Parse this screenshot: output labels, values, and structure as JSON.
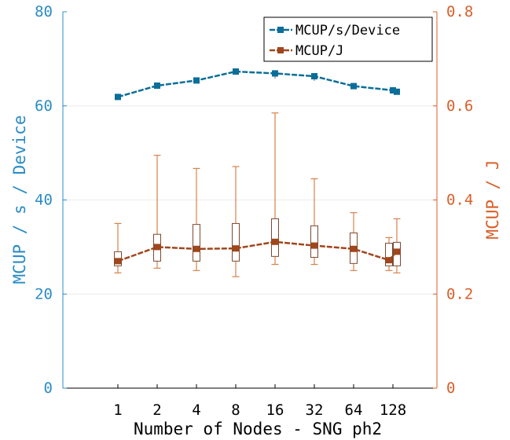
{
  "chart_data": {
    "type": "line",
    "title": "",
    "xlabel": "Number of Nodes - SNG ph2",
    "ylabel_left": "MCUP / s / Device",
    "ylabel_right": "MCUP / J",
    "categories": [
      "1",
      "2",
      "4",
      "8",
      "16",
      "32",
      "64",
      "128"
    ],
    "ylim_left": [
      0,
      80
    ],
    "ylim_right": [
      0,
      0.8
    ],
    "yticks_left": [
      "0",
      "20",
      "40",
      "60",
      "80"
    ],
    "yticks_right": [
      "0",
      "0.2",
      "0.4",
      "0.6",
      "0.8"
    ],
    "grid": true,
    "legend_position": "top-right",
    "colors": {
      "left_axis": "#2b8cc4",
      "right_axis": "#d95f2a",
      "series1": "#0b6e99",
      "series2": "#a0461c",
      "box": "#7a4a30",
      "whisker": "#d9824a"
    },
    "series": [
      {
        "name": "MCUP/s/Device",
        "axis": "left",
        "x": [
          1,
          2,
          3,
          4,
          5,
          6,
          7,
          8,
          8.1
        ],
        "values": [
          61.9,
          64.3,
          65.4,
          67.3,
          66.9,
          66.3,
          64.2,
          63.3,
          63.0
        ],
        "err_low": [
          61.3,
          63.8,
          64.9,
          66.8,
          65.8,
          65.3,
          63.7,
          62.8,
          62.6
        ],
        "err_high": [
          62.4,
          64.7,
          65.9,
          67.8,
          67.6,
          67.0,
          64.6,
          63.7,
          63.4
        ]
      },
      {
        "name": "MCUP/J",
        "axis": "right",
        "x": [
          1,
          2,
          3,
          4,
          5,
          6,
          7,
          7.9,
          8.1
        ],
        "values": [
          0.27,
          0.3,
          0.296,
          0.297,
          0.311,
          0.303,
          0.296,
          0.272,
          0.29
        ],
        "whisker_low": [
          0.245,
          0.255,
          0.25,
          0.237,
          0.263,
          0.263,
          0.25,
          0.25,
          0.245
        ],
        "q1": [
          0.26,
          0.27,
          0.27,
          0.27,
          0.28,
          0.278,
          0.265,
          0.26,
          0.26
        ],
        "q3": [
          0.29,
          0.327,
          0.348,
          0.35,
          0.36,
          0.345,
          0.33,
          0.308,
          0.31
        ],
        "whisker_high": [
          0.35,
          0.495,
          0.467,
          0.471,
          0.585,
          0.445,
          0.373,
          0.32,
          0.36
        ]
      }
    ]
  }
}
